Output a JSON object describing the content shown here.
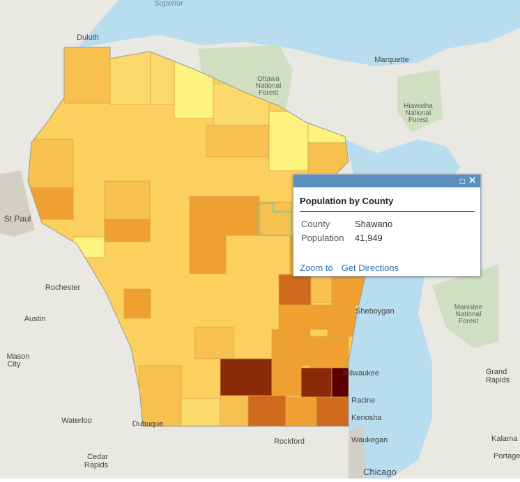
{
  "map": {
    "places": [
      {
        "lines": [
          "Superior"
        ]
      },
      {
        "lines": [
          "Duluth"
        ]
      },
      {
        "lines": [
          "Marquette"
        ]
      },
      {
        "lines": [
          "Ottawa",
          "National",
          "Forest"
        ]
      },
      {
        "lines": [
          "Hiawatha",
          "National",
          "Forest"
        ]
      },
      {
        "lines": [
          "St Paul"
        ]
      },
      {
        "lines": [
          "Rochester"
        ]
      },
      {
        "lines": [
          "Austin"
        ]
      },
      {
        "lines": [
          "Mason",
          "City"
        ]
      },
      {
        "lines": [
          "Sheboygan"
        ]
      },
      {
        "lines": [
          "Manistee",
          "National",
          "Forest"
        ]
      },
      {
        "lines": [
          "Milwaukee"
        ]
      },
      {
        "lines": [
          "Grand",
          "Rapids"
        ]
      },
      {
        "lines": [
          "Racine"
        ]
      },
      {
        "lines": [
          "Kenosha"
        ]
      },
      {
        "lines": [
          "Waukegan"
        ]
      },
      {
        "lines": [
          "Chicago"
        ]
      },
      {
        "lines": [
          "Rockford"
        ]
      },
      {
        "lines": [
          "Dubuque"
        ]
      },
      {
        "lines": [
          "Waterloo"
        ]
      },
      {
        "lines": [
          "Cedar",
          "Rapids"
        ]
      },
      {
        "lines": [
          "Kalama"
        ]
      },
      {
        "lines": [
          "Portage"
        ]
      }
    ]
  },
  "popup": {
    "title": "Population by County",
    "fields": [
      {
        "label": "County",
        "value": "Shawano"
      },
      {
        "label": "Population",
        "value": "41,949"
      }
    ],
    "actions": [
      "Zoom to",
      "Get Directions"
    ]
  }
}
